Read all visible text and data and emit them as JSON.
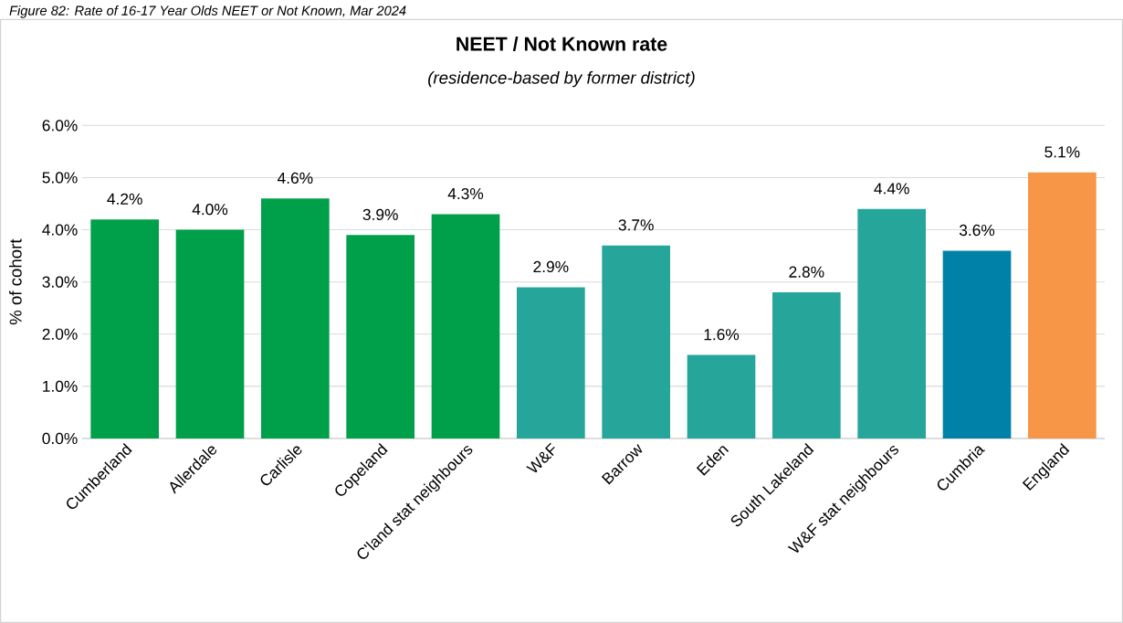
{
  "chart_data": {
    "type": "bar",
    "title": "NEET / Not Known rate",
    "subtitle": "(residence-based by former district)",
    "ylabel": "% of cohort",
    "annotations": [
      "Figure 82: Rate of 16-17 Year Olds NEET or Not Known, Mar 2024"
    ],
    "categories": [
      "Cumberland",
      "Allerdale",
      "Carlisle",
      "Copeland",
      "C'land stat neighbours",
      "W&F",
      "Barrow",
      "Eden",
      "South Lakeland",
      "W&F stat neighbours",
      "Cumbria",
      "England"
    ],
    "values": [
      4.2,
      4.0,
      4.6,
      3.9,
      4.3,
      2.9,
      3.7,
      1.6,
      2.8,
      4.4,
      3.6,
      5.1
    ],
    "value_labels": [
      "4.2%",
      "4.0%",
      "4.6%",
      "3.9%",
      "4.3%",
      "2.9%",
      "3.7%",
      "1.6%",
      "2.8%",
      "4.4%",
      "3.6%",
      "5.1%"
    ],
    "colors": [
      "#00a04b",
      "#00a04b",
      "#00a04b",
      "#00a04b",
      "#00a04b",
      "#26a69a",
      "#26a69a",
      "#26a69a",
      "#26a69a",
      "#26a69a",
      "#0081a7",
      "#f79646"
    ],
    "ylim": [
      0,
      6
    ],
    "yticks": [
      {
        "value": 0,
        "label": "0.0%"
      },
      {
        "value": 1,
        "label": "1.0%"
      },
      {
        "value": 2,
        "label": "2.0%"
      },
      {
        "value": 3,
        "label": "3.0%"
      },
      {
        "value": 4,
        "label": "4.0%"
      },
      {
        "value": 5,
        "label": "5.0%"
      },
      {
        "value": 6,
        "label": "6.0%"
      }
    ],
    "grid": "y"
  }
}
